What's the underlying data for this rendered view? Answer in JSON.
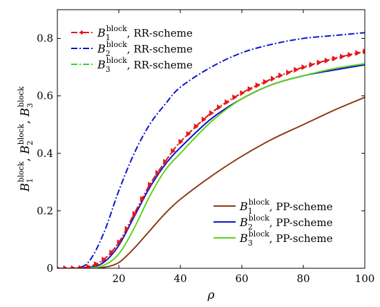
{
  "chart_data": {
    "type": "line",
    "title": "",
    "xlabel": "ρ",
    "ylabel_parts": [
      {
        "base": "B",
        "sub": "1",
        "sup": "block"
      },
      {
        "base": "B",
        "sub": "2",
        "sup": "block"
      },
      {
        "base": "B",
        "sub": "3",
        "sup": "block"
      }
    ],
    "ylabel_sep": ", ",
    "xlim": [
      0,
      100
    ],
    "ylim": [
      0,
      0.9
    ],
    "xticks": [
      20,
      40,
      60,
      80,
      100
    ],
    "yticks": [
      0,
      0.2,
      0.4,
      0.6,
      0.8
    ],
    "xtick_labels": [
      "20",
      "40",
      "60",
      "80",
      "100"
    ],
    "ytick_labels": [
      "0",
      "0.2",
      "0.4",
      "0.6",
      "0.8"
    ],
    "grid": false,
    "x": [
      0,
      5,
      10,
      15,
      20,
      25,
      30,
      35,
      40,
      50,
      60,
      70,
      80,
      90,
      100
    ],
    "series": [
      {
        "name": "RR-scheme",
        "base": "B",
        "sub": "1",
        "sup": "block",
        "legend": "top-left",
        "color": "#e8141b",
        "style": "dashdot-marker",
        "values": [
          0,
          0,
          0.005,
          0.03,
          0.09,
          0.19,
          0.29,
          0.37,
          0.44,
          0.54,
          0.61,
          0.66,
          0.7,
          0.73,
          0.755
        ]
      },
      {
        "name": "RR-scheme",
        "base": "B",
        "sub": "2",
        "sup": "block",
        "legend": "top-left",
        "color": "#0b12c9",
        "style": "dashdot",
        "values": [
          0,
          0,
          0.02,
          0.12,
          0.27,
          0.4,
          0.5,
          0.57,
          0.63,
          0.7,
          0.75,
          0.78,
          0.8,
          0.81,
          0.82
        ]
      },
      {
        "name": "RR-scheme",
        "base": "B",
        "sub": "3",
        "sup": "block",
        "legend": "top-left",
        "color": "#2fd22f",
        "style": "dashdot",
        "values": [
          0,
          0,
          0.005,
          0.03,
          0.09,
          0.19,
          0.29,
          0.37,
          0.44,
          0.54,
          0.61,
          0.66,
          0.7,
          0.73,
          0.755
        ]
      },
      {
        "name": "PP-scheme",
        "base": "B",
        "sub": "1",
        "sup": "block",
        "legend": "bottom-right",
        "color": "#8b3a14",
        "style": "solid",
        "values": [
          0,
          0,
          0,
          0.003,
          0.02,
          0.07,
          0.13,
          0.19,
          0.24,
          0.32,
          0.39,
          0.45,
          0.5,
          0.55,
          0.595
        ]
      },
      {
        "name": "PP-scheme",
        "base": "B",
        "sub": "2",
        "sup": "block",
        "legend": "bottom-right",
        "color": "#0b12c9",
        "style": "solid",
        "values": [
          0,
          0,
          0.002,
          0.02,
          0.08,
          0.18,
          0.28,
          0.36,
          0.42,
          0.52,
          0.59,
          0.64,
          0.67,
          0.69,
          0.708
        ]
      },
      {
        "name": "PP-scheme",
        "base": "B",
        "sub": "3",
        "sup": "block",
        "legend": "bottom-right",
        "color": "#5fd21c",
        "style": "solid",
        "values": [
          0,
          0,
          0.001,
          0.01,
          0.05,
          0.14,
          0.25,
          0.34,
          0.4,
          0.51,
          0.59,
          0.64,
          0.67,
          0.695,
          0.712
        ]
      }
    ],
    "legends": [
      {
        "position": "top-left",
        "series_indices": [
          0,
          1,
          2
        ]
      },
      {
        "position": "bottom-right",
        "series_indices": [
          3,
          4,
          5
        ]
      }
    ]
  }
}
